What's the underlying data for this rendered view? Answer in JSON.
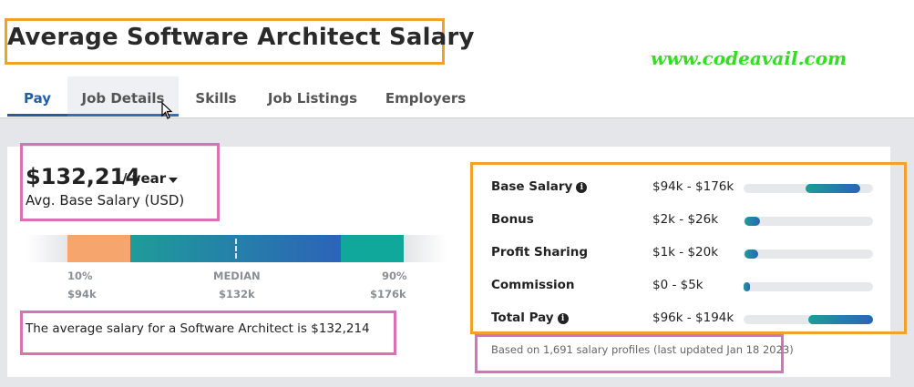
{
  "header": {
    "title": "Average Software Architect Salary",
    "watermark": "www.codeavail.com"
  },
  "tabs": [
    {
      "label": "Pay",
      "active": true
    },
    {
      "label": "Job Details",
      "active": false
    },
    {
      "label": "Skills",
      "active": false
    },
    {
      "label": "Job Listings",
      "active": false
    },
    {
      "label": "Employers",
      "active": false
    }
  ],
  "salary": {
    "value": "$132,214",
    "period": "/ year",
    "label": "Avg. Base Salary (USD)",
    "range_bar": {
      "low": {
        "percentile": "10%",
        "value": "$94k"
      },
      "median": {
        "percentile": "MEDIAN",
        "value": "$132k"
      },
      "high": {
        "percentile": "90%",
        "value": "$176k"
      }
    },
    "summary": "The average salary for a Software Architect is $132,214"
  },
  "compensation": {
    "rows": [
      {
        "label": "Base Salary",
        "info": true,
        "range": "$94k - $176k",
        "bar_start": 0.48,
        "bar_end": 0.9
      },
      {
        "label": "Bonus",
        "info": false,
        "range": "$2k - $26k",
        "bar_start": 0.01,
        "bar_end": 0.13
      },
      {
        "label": "Profit Sharing",
        "info": false,
        "range": "$1k - $20k",
        "bar_start": 0.01,
        "bar_end": 0.11
      },
      {
        "label": "Commission",
        "info": false,
        "range": "$0 - $5k",
        "bar_start": 0.0,
        "bar_end": 0.05
      },
      {
        "label": "Total Pay",
        "info": true,
        "range": "$96k - $194k",
        "bar_start": 0.5,
        "bar_end": 1.0
      }
    ],
    "based_on": "Based on 1,691 salary profiles (last updated Jan 18 2023)"
  },
  "colors": {
    "accent": "#1f5fa8",
    "highlight_orange": "#f4a226",
    "highlight_pink": "#d872b7",
    "watermark": "#33dd22",
    "low_segment": "#f6a56c",
    "high_segment": "#0fa89a"
  }
}
